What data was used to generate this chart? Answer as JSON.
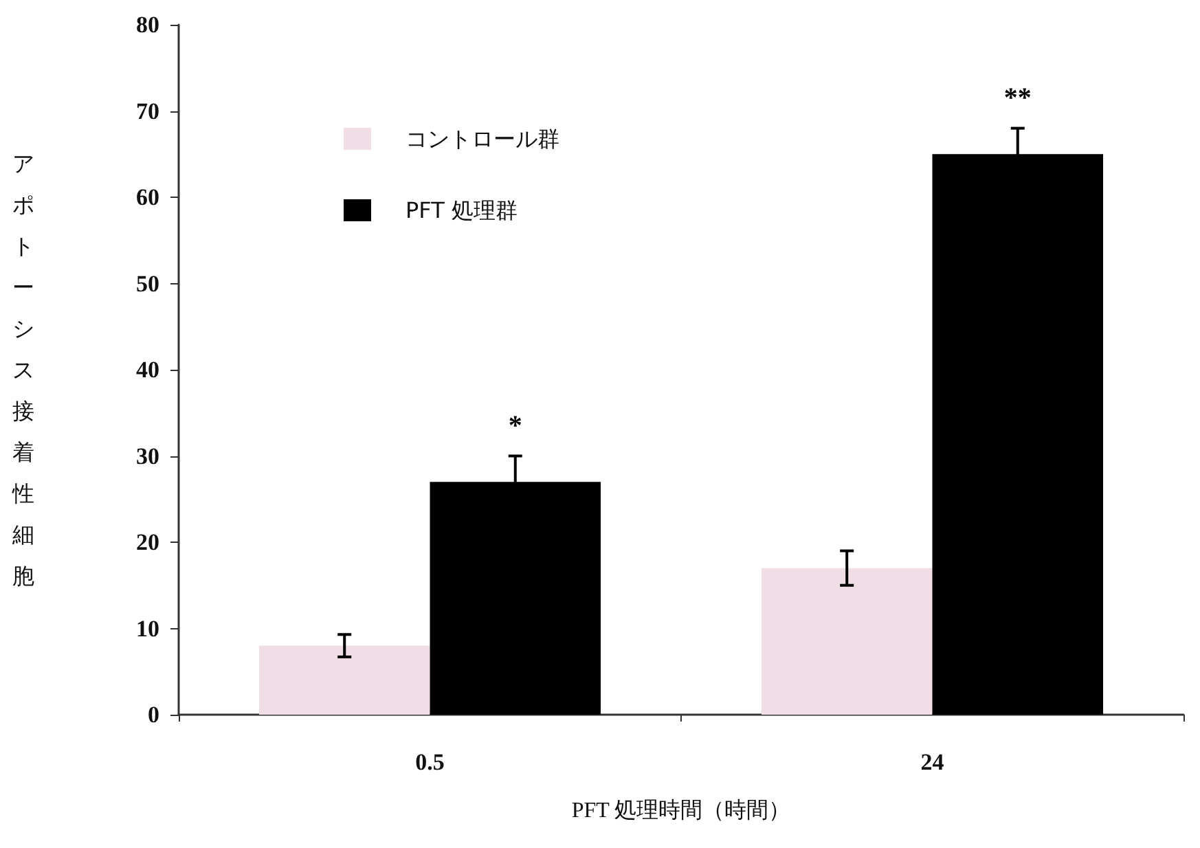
{
  "chart_data": {
    "type": "bar",
    "xlabel": "PFT 処理時間（時間）",
    "ylabel": "アポトーシス接着性細胞",
    "categories": [
      "0.5",
      "24"
    ],
    "series": [
      {
        "name": "コントロール群",
        "color": "#f0dde6",
        "values": [
          8,
          17
        ],
        "errors": [
          1.3,
          2
        ]
      },
      {
        "name": "PFT 処理群",
        "color": "#000000",
        "values": [
          27,
          65
        ],
        "errors": [
          3,
          3
        ]
      }
    ],
    "ylim": [
      0,
      80
    ],
    "yticks": [
      0,
      10,
      20,
      30,
      40,
      50,
      60,
      70,
      80
    ],
    "grid": false,
    "legend": "top left",
    "annotations": [
      "*",
      "**"
    ]
  }
}
